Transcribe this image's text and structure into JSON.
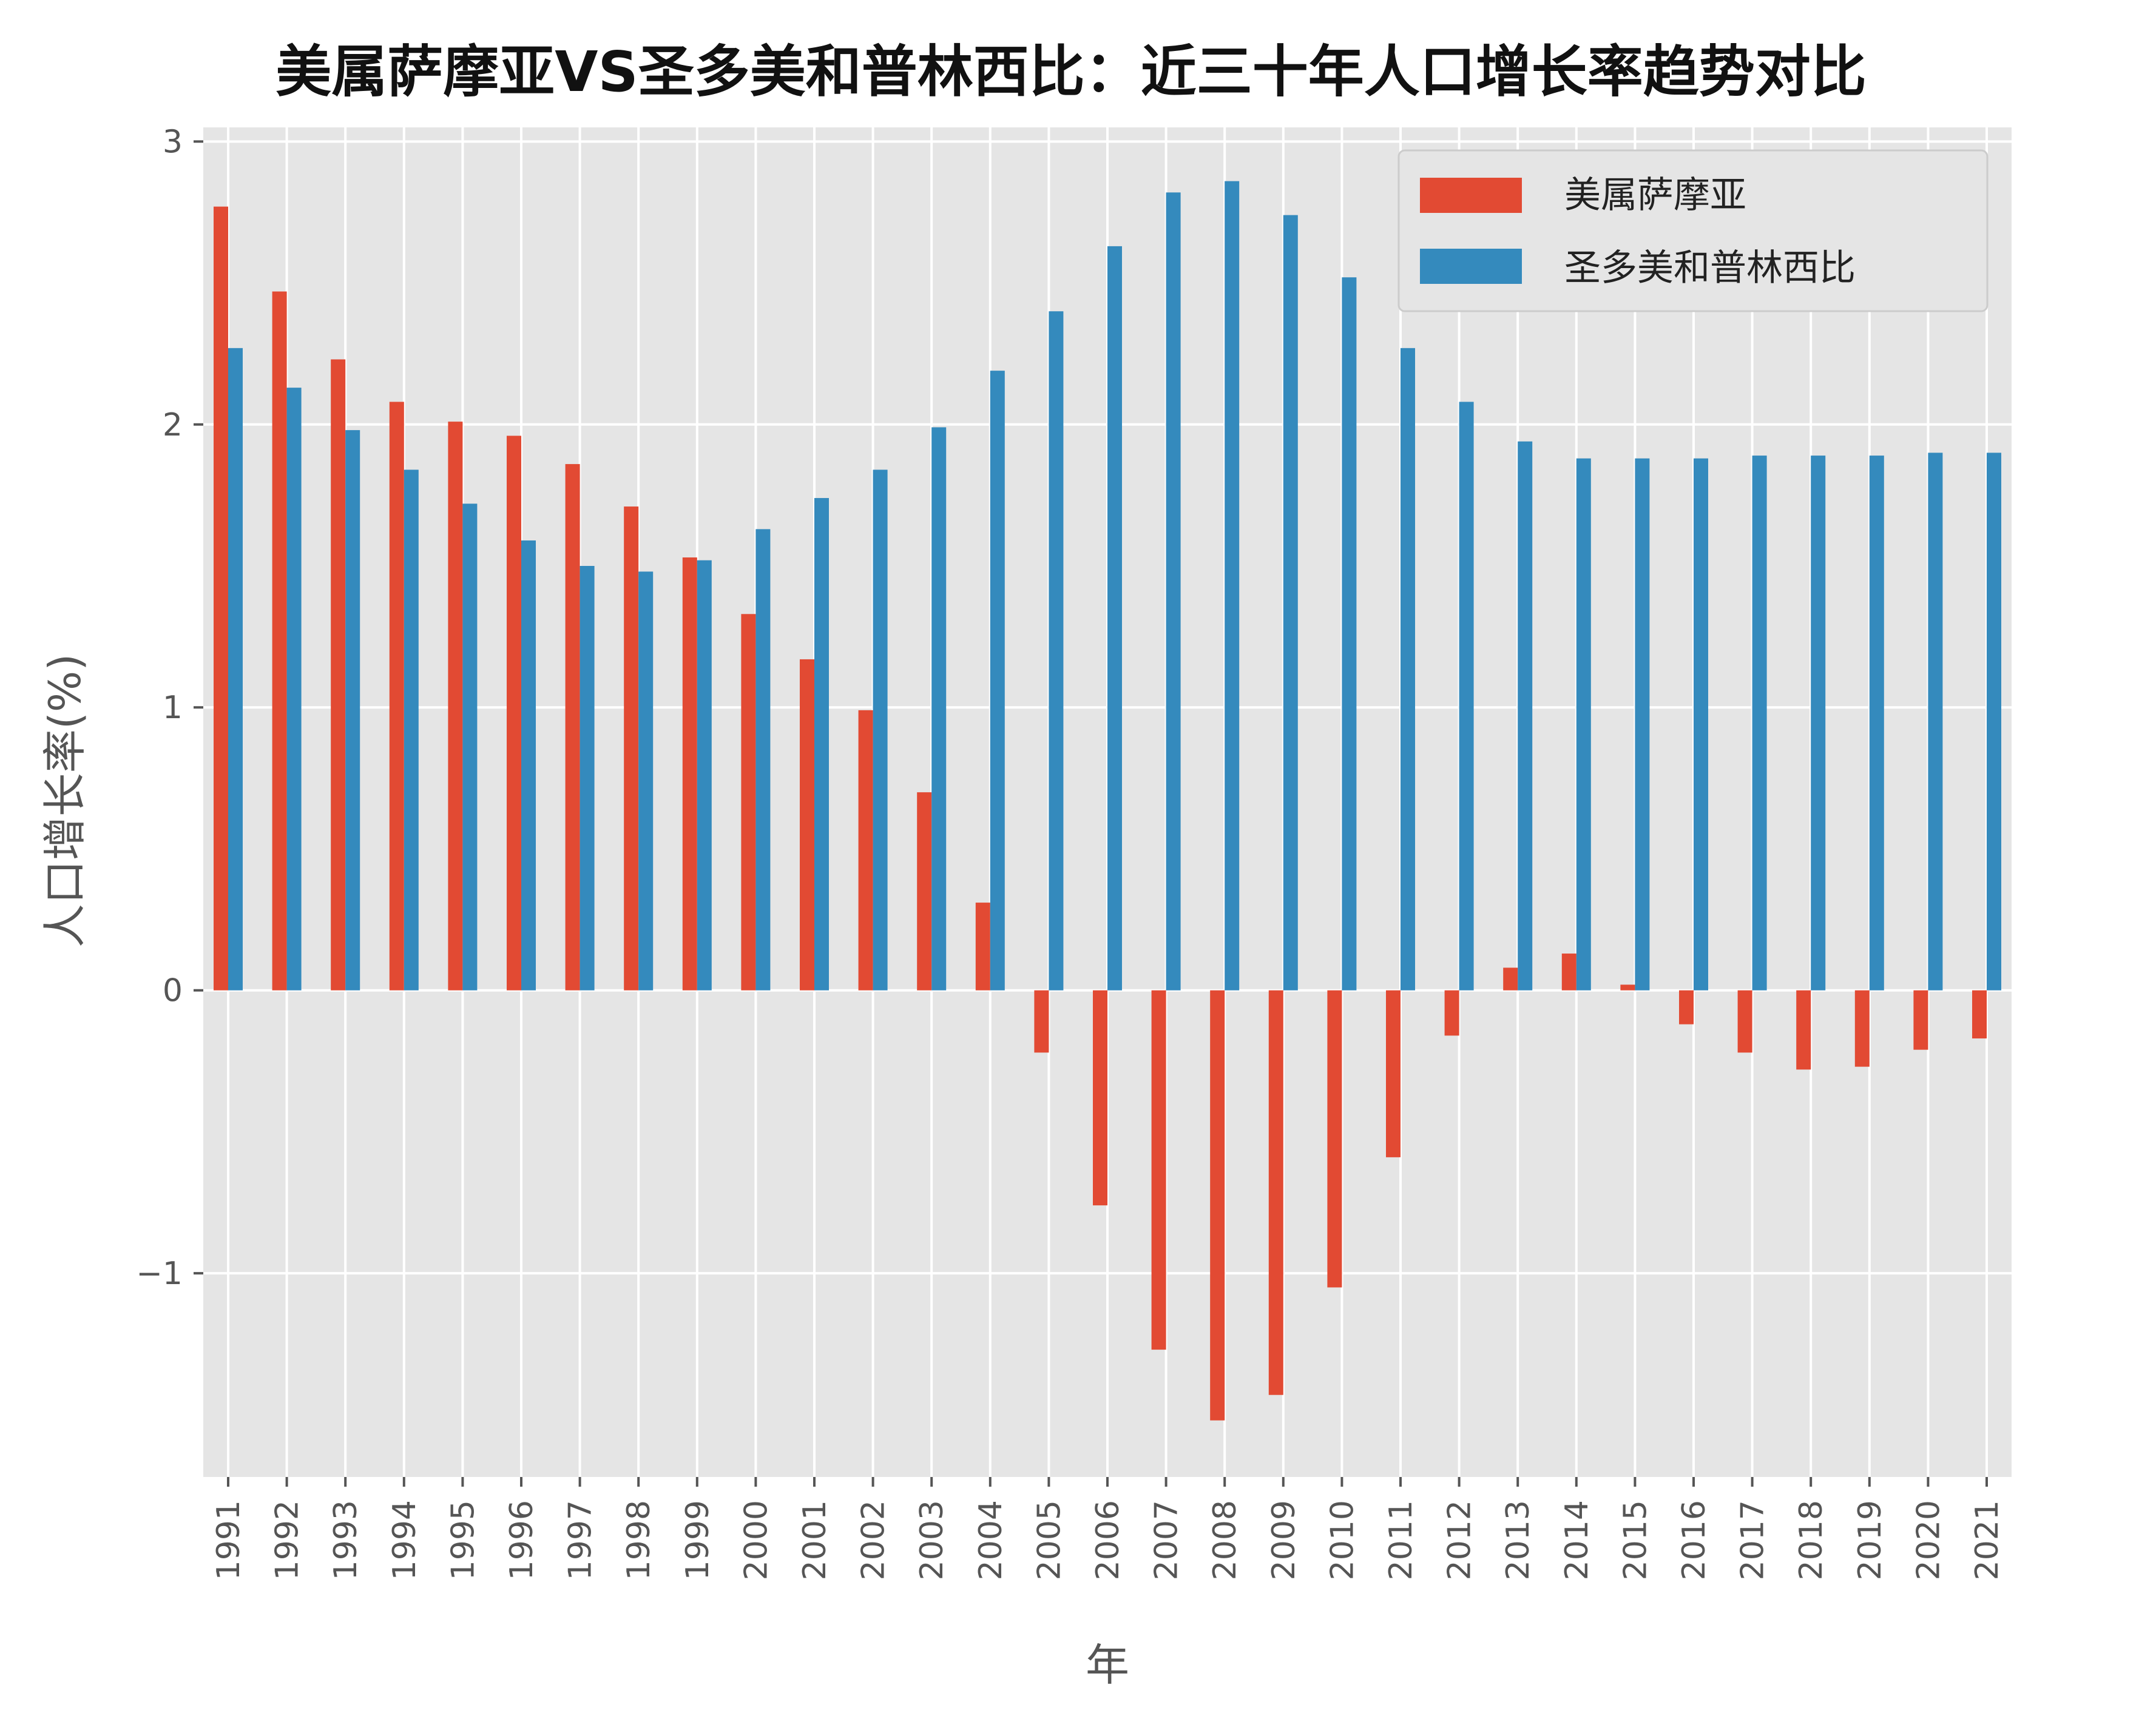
{
  "chart_data": {
    "type": "bar",
    "title": "美属萨摩亚VS圣多美和普林西比：近三十年人口增长率趋势对比",
    "xlabel": "年",
    "ylabel": "人口增长率(%)",
    "ylim": [
      -1.72,
      3.05
    ],
    "yticks": [
      -1,
      0,
      1,
      2,
      3
    ],
    "ytick_labels": [
      "−1",
      "0",
      "1",
      "2",
      "3"
    ],
    "grid": true,
    "legend_position": "top-right",
    "categories": [
      "1991",
      "1992",
      "1993",
      "1994",
      "1995",
      "1996",
      "1997",
      "1998",
      "1999",
      "2000",
      "2001",
      "2002",
      "2003",
      "2004",
      "2005",
      "2006",
      "2007",
      "2008",
      "2009",
      "2010",
      "2011",
      "2012",
      "2013",
      "2014",
      "2015",
      "2016",
      "2017",
      "2018",
      "2019",
      "2020",
      "2021"
    ],
    "series": [
      {
        "name": "美属萨摩亚",
        "color": "#E24A33",
        "values": [
          2.77,
          2.47,
          2.23,
          2.08,
          2.01,
          1.96,
          1.86,
          1.71,
          1.53,
          1.33,
          1.17,
          0.99,
          0.7,
          0.31,
          -0.22,
          -0.76,
          -1.27,
          -1.52,
          -1.43,
          -1.05,
          -0.59,
          -0.16,
          0.08,
          0.13,
          0.02,
          -0.12,
          -0.22,
          -0.28,
          -0.27,
          -0.21,
          -0.17
        ]
      },
      {
        "name": "圣多美和普林西比",
        "color": "#348ABD",
        "values": [
          2.27,
          2.13,
          1.98,
          1.84,
          1.72,
          1.59,
          1.5,
          1.48,
          1.52,
          1.63,
          1.74,
          1.84,
          1.99,
          2.19,
          2.4,
          2.63,
          2.82,
          2.86,
          2.74,
          2.52,
          2.27,
          2.08,
          1.94,
          1.88,
          1.88,
          1.88,
          1.89,
          1.89,
          1.89,
          1.9,
          1.9
        ]
      }
    ]
  }
}
